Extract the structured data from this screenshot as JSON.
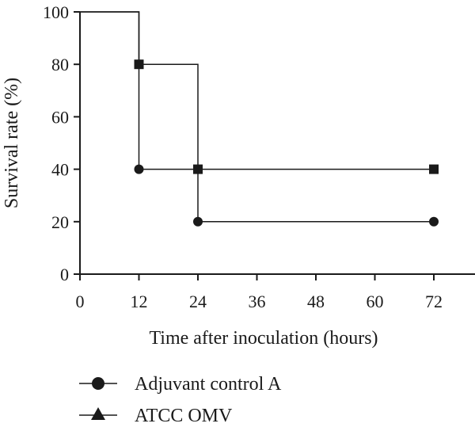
{
  "chart_data": {
    "type": "line",
    "subtype": "step",
    "title": "",
    "xlabel": "Time after inoculation (hours)",
    "ylabel": "Survival rate (%)",
    "xlim": [
      0,
      72
    ],
    "ylim": [
      0,
      100
    ],
    "xticks": [
      "0",
      "12",
      "24",
      "36",
      "48",
      "60",
      "72"
    ],
    "yticks": [
      "0",
      "20",
      "40",
      "60",
      "80",
      "100"
    ],
    "grid": false,
    "legend_position": "bottom-left",
    "series": [
      {
        "name": "Adjuvant control A",
        "marker": "circle",
        "color": "#1a1a1a",
        "x": [
          0,
          12,
          24,
          72
        ],
        "y": [
          100,
          40,
          20,
          20
        ]
      },
      {
        "name": "ATCC OMV",
        "marker": "triangle",
        "color": "#1a1a1a",
        "x": [
          0,
          12,
          24,
          72
        ],
        "y": [
          100,
          80,
          40,
          40
        ]
      }
    ]
  }
}
